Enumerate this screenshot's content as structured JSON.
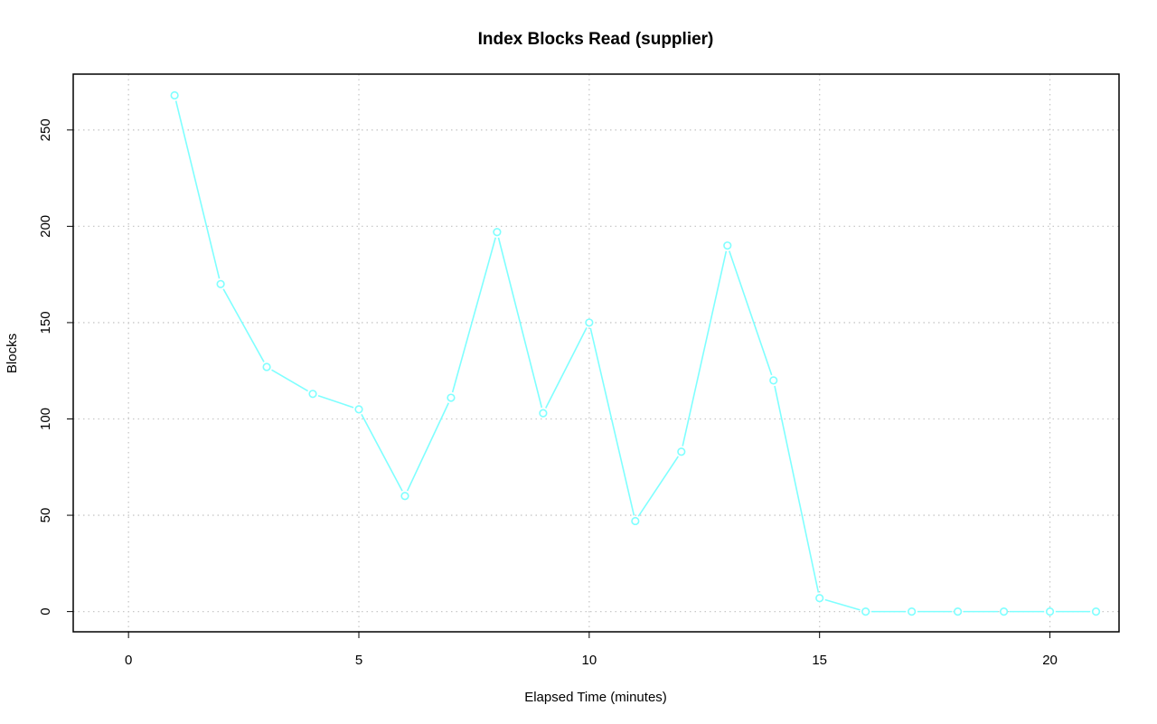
{
  "chart_data": {
    "type": "line",
    "title": "Index Blocks Read (supplier)",
    "xlabel": "Elapsed Time (minutes)",
    "ylabel": "Blocks",
    "xlim": [
      -1.2,
      21.5
    ],
    "ylim": [
      -10.5,
      279
    ],
    "x_ticks": [
      0,
      5,
      10,
      15,
      20
    ],
    "y_ticks": [
      0,
      50,
      100,
      150,
      200,
      250
    ],
    "grid": true,
    "series": [
      {
        "color": "#7fffff",
        "x": [
          1,
          2,
          3,
          4,
          5,
          6,
          7,
          8,
          9,
          10,
          11,
          12,
          13,
          14,
          15,
          16,
          17,
          18,
          19,
          20,
          21
        ],
        "values": [
          268,
          170,
          127,
          113,
          105,
          60,
          111,
          197,
          103,
          150,
          47,
          83,
          190,
          120,
          7,
          0,
          0,
          0,
          0,
          0,
          0
        ]
      }
    ]
  }
}
